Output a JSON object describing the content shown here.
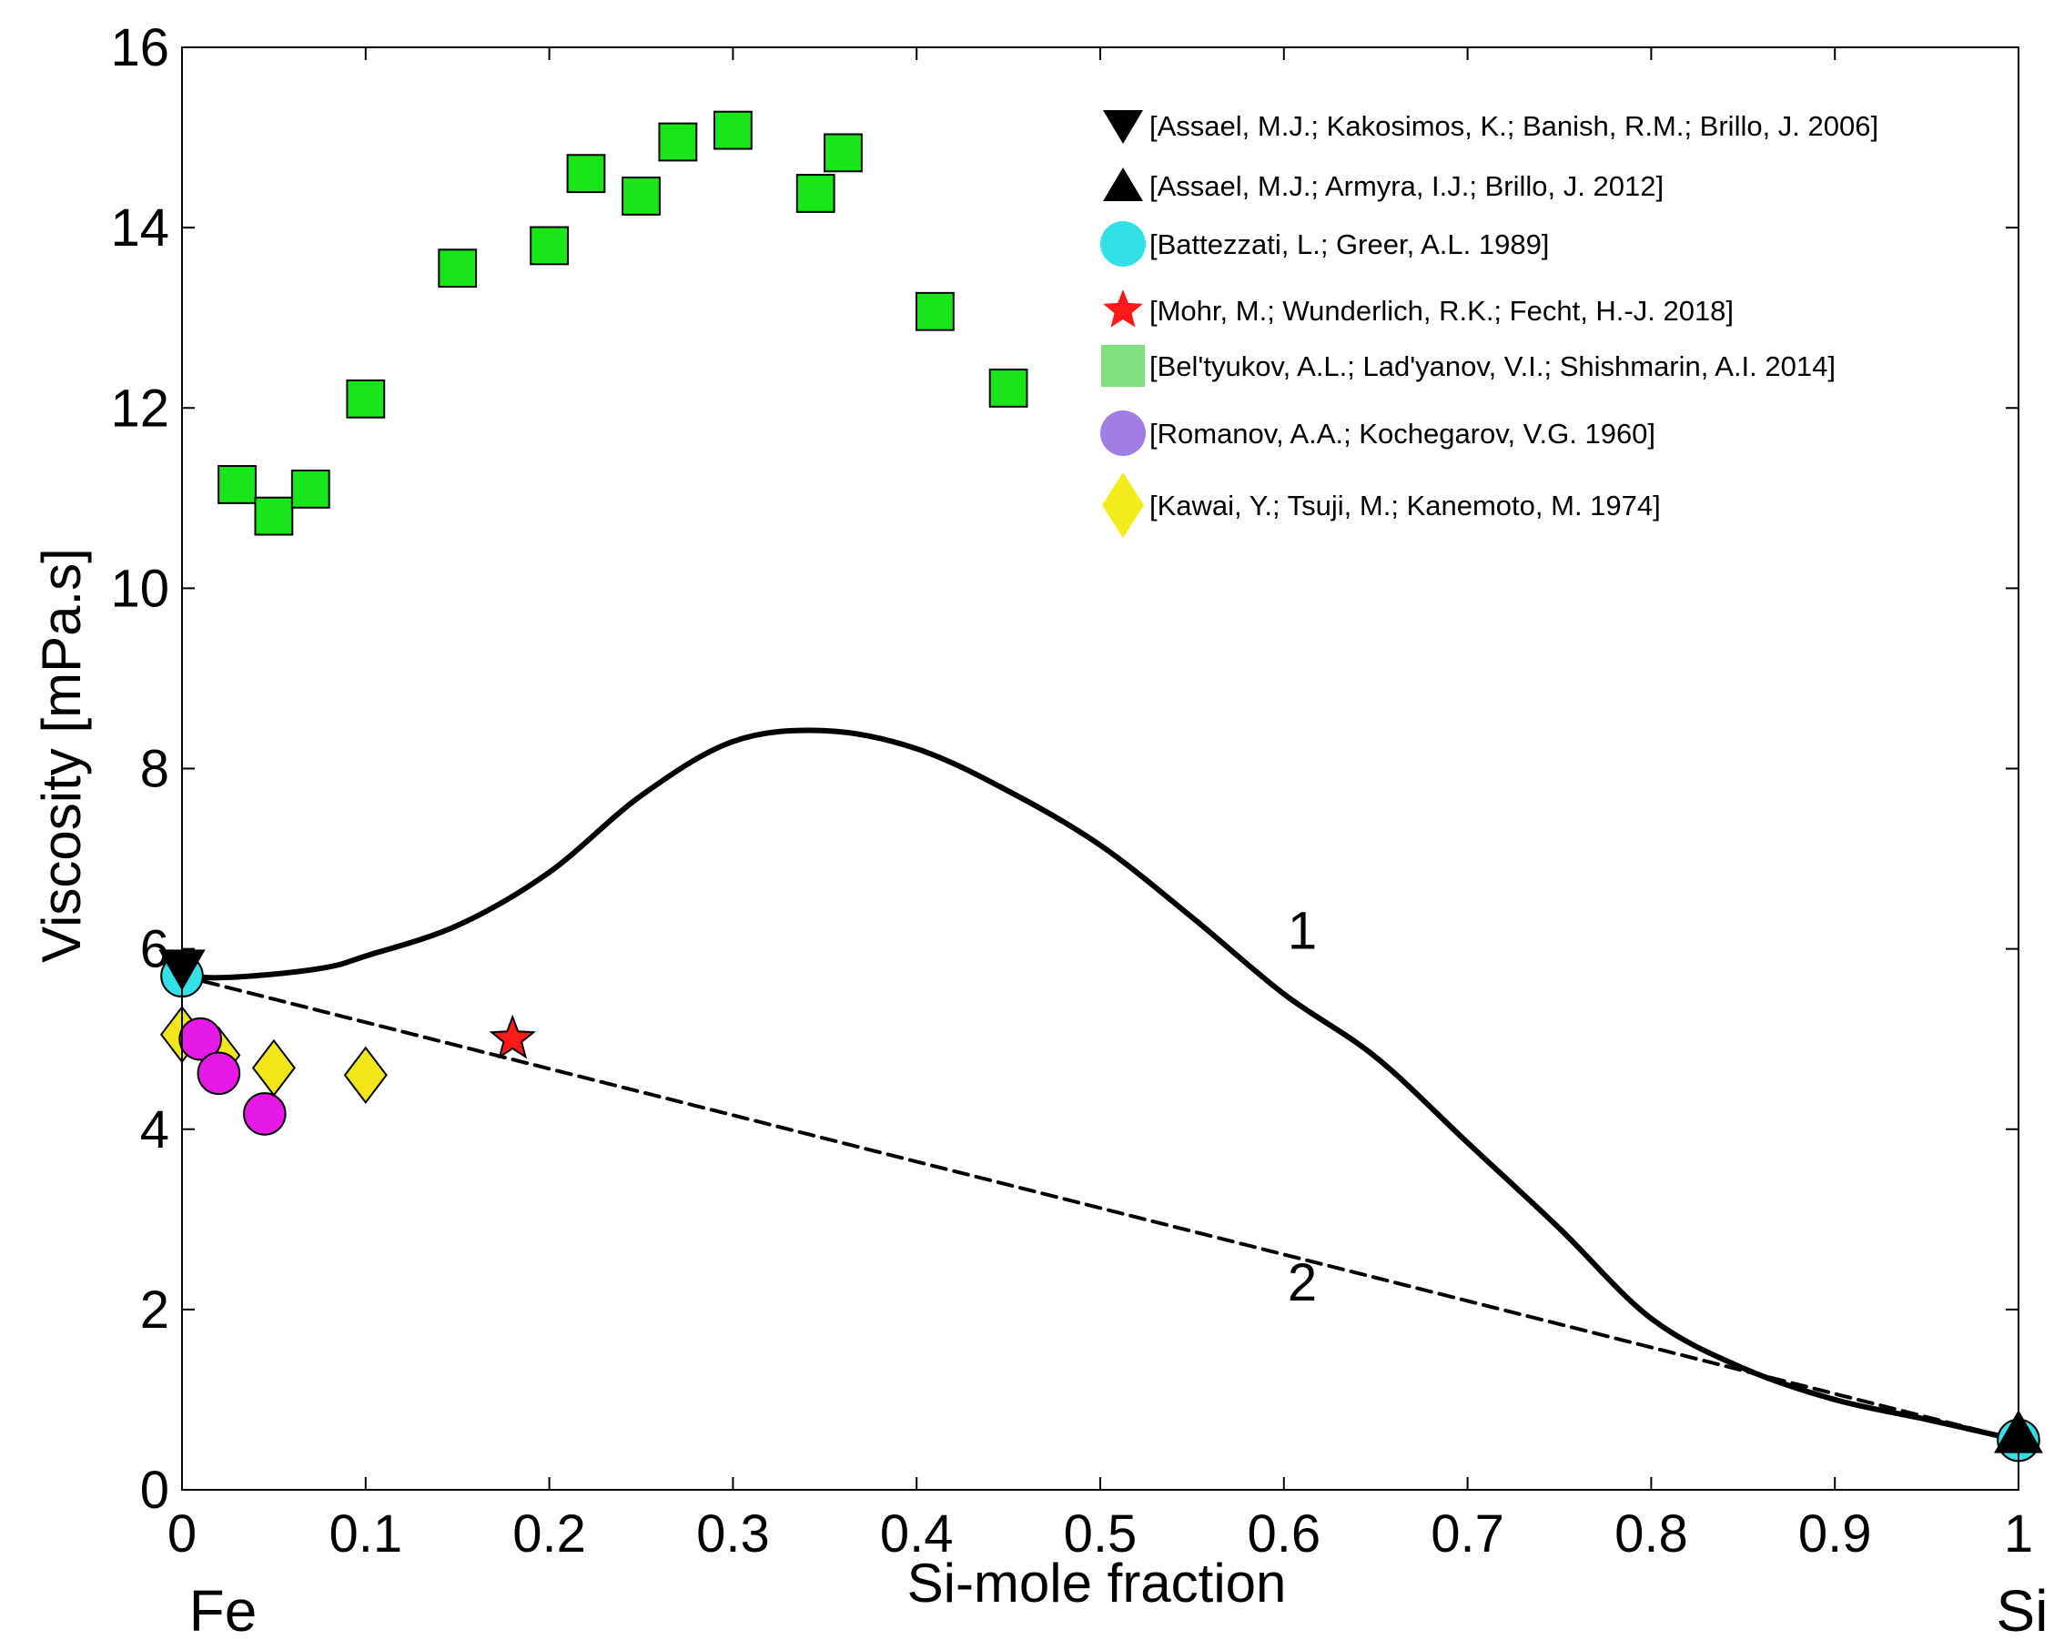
{
  "chart_data": {
    "type": "line",
    "title": "",
    "xlabel": "Si-mole fraction",
    "ylabel": "Viscosity [mPa.s]",
    "xlim": [
      0,
      1
    ],
    "ylim": [
      0,
      16
    ],
    "x_ticks": [
      "0",
      "0.1",
      "0.2",
      "0.3",
      "0.4",
      "0.5",
      "0.6",
      "0.7",
      "0.8",
      "0.9",
      "1"
    ],
    "y_ticks": [
      "0",
      "2",
      "4",
      "6",
      "8",
      "10",
      "12",
      "14",
      "16"
    ],
    "x_end_labels": {
      "left": "Fe",
      "right": "Si"
    },
    "grid": false,
    "legend_position": "top-right",
    "curves": [
      {
        "name": "1",
        "label": "1",
        "style": "solid",
        "color": "#000000",
        "x": [
          0,
          0.02,
          0.05,
          0.08,
          0.1,
          0.15,
          0.2,
          0.25,
          0.3,
          0.35,
          0.4,
          0.45,
          0.5,
          0.55,
          0.6,
          0.65,
          0.7,
          0.75,
          0.8,
          0.85,
          0.9,
          0.95,
          1.0
        ],
        "y": [
          5.7,
          5.68,
          5.72,
          5.8,
          5.92,
          6.26,
          6.85,
          7.7,
          8.3,
          8.42,
          8.22,
          7.75,
          7.15,
          6.35,
          5.5,
          4.8,
          3.85,
          2.9,
          1.9,
          1.35,
          1.0,
          0.78,
          0.55
        ],
        "label_at": [
          0.61,
          6.0
        ]
      },
      {
        "name": "2",
        "label": "2",
        "style": "dashed",
        "color": "#000000",
        "x": [
          0,
          1
        ],
        "y": [
          5.7,
          0.55
        ],
        "label_at": [
          0.61,
          2.1
        ]
      }
    ],
    "series": [
      {
        "name": "[Assael, M.J.; Kakosimos, K.; Banish, R.M.; Brillo, J. 2006]",
        "marker": "triangle-down",
        "color": "#000000",
        "legend_color": "#000000",
        "x": [
          0
        ],
        "y": [
          5.8
        ]
      },
      {
        "name": "[Assael, M.J.; Armyra, I.J.; Brillo, J. 2012]",
        "marker": "triangle-up",
        "color": "#000000",
        "legend_color": "#000000",
        "x": [
          1
        ],
        "y": [
          0.6
        ]
      },
      {
        "name": "[Battezzati, L.; Greer, A.L. 1989]",
        "marker": "circle",
        "color": "#33e0e6",
        "legend_color": "#33e0e6",
        "x": [
          0,
          1
        ],
        "y": [
          5.7,
          0.55
        ]
      },
      {
        "name": "[Mohr, M.; Wunderlich, R.K.; Fecht, H.-J. 2018]",
        "marker": "star",
        "color": "#ff1a1a",
        "legend_color": "#ff1a1a",
        "x": [
          0.18
        ],
        "y": [
          5.0
        ]
      },
      {
        "name": "[Bel'tyukov, A.L.; Lad'yanov, V.I.; Shishmarin, A.I. 2014]",
        "marker": "square",
        "color": "#19e619",
        "legend_color": "#7fe07f",
        "x": [
          0.03,
          0.05,
          0.07,
          0.1,
          0.15,
          0.2,
          0.22,
          0.25,
          0.27,
          0.3,
          0.345,
          0.36,
          0.41,
          0.45
        ],
        "y": [
          11.15,
          10.8,
          11.1,
          12.1,
          13.55,
          13.8,
          14.6,
          14.35,
          14.95,
          15.08,
          14.38,
          14.83,
          13.07,
          12.22
        ]
      },
      {
        "name": "[Romanov, A.A.; Kochegarov, V.G.  1960]",
        "marker": "circle",
        "color": "#e619e6",
        "legend_color": "#a07ee6",
        "x": [
          0.01,
          0.02,
          0.045
        ],
        "y": [
          5.0,
          4.62,
          4.17
        ]
      },
      {
        "name": "[Kawai, Y.; Tsuji, M.; Kanemoto, M. 1974]",
        "marker": "diamond",
        "color": "#f2e61a",
        "legend_color": "#f2ec1a",
        "x": [
          0,
          0.02,
          0.05,
          0.1
        ],
        "y": [
          5.05,
          4.82,
          4.68,
          4.6
        ]
      }
    ]
  }
}
